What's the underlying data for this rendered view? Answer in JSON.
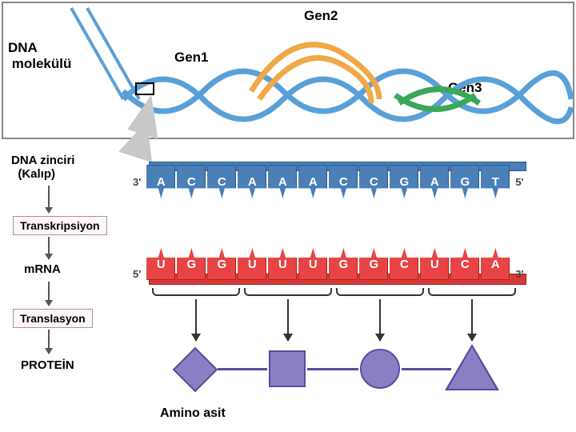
{
  "top": {
    "dna_molecule": "DNA\n molekülü",
    "gen1": "Gen1",
    "gen2": "Gen2",
    "gen3": "Gen3"
  },
  "strand": {
    "label": "DNA zinciri\n  (Kalıp)",
    "left_end": "3'",
    "right_end": "5'",
    "bases": [
      "A",
      "C",
      "C",
      "A",
      "A",
      "A",
      "C",
      "C",
      "G",
      "A",
      "G",
      "T"
    ]
  },
  "transcription": {
    "label": "Transkripsiyon"
  },
  "mrna": {
    "label": "mRNA",
    "left_end": "5'",
    "right_end": "3'",
    "bases": [
      "U",
      "G",
      "G",
      "U",
      "U",
      "U",
      "G",
      "G",
      "C",
      "U",
      "C",
      "A"
    ]
  },
  "translation": {
    "label": "Translasyon"
  },
  "protein": {
    "label": "PROTEİN"
  },
  "amino": {
    "label": "Amino asit"
  },
  "colors": {
    "dna_blue": "#4a7fb8",
    "rna_red": "#e84444",
    "rna_bar": "#d63a3a",
    "shape_fill": "#8b7fc4",
    "shape_border": "#5a4a9a",
    "helix_blue": "#5aa0d8",
    "helix_orange": "#f0a848",
    "helix_green": "#3aa858"
  }
}
